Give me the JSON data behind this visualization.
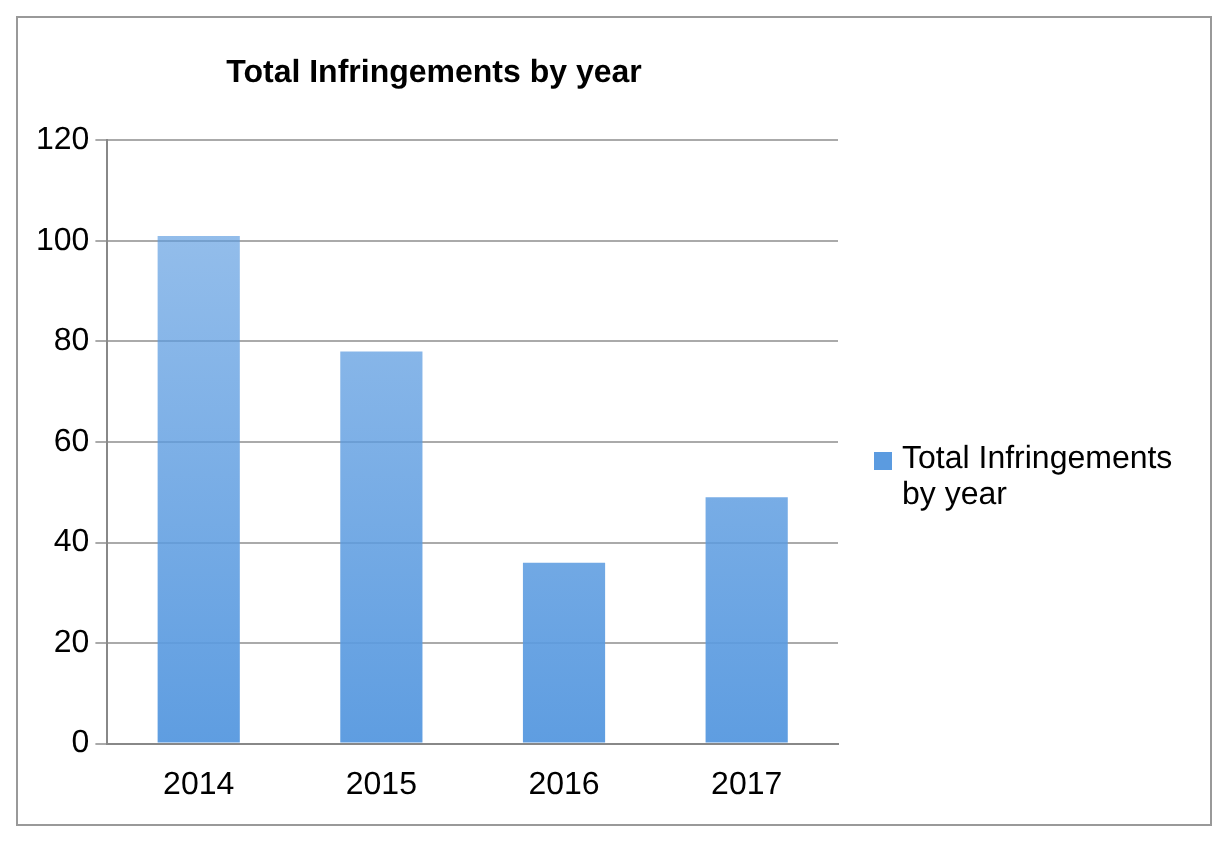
{
  "chart_data": {
    "type": "bar",
    "title": "Total Infringements by year",
    "categories": [
      "2014",
      "2015",
      "2016",
      "2017"
    ],
    "series": [
      {
        "name": "Total Infringements by year",
        "color": "#5b9be0",
        "values": [
          101,
          78,
          36,
          49
        ]
      }
    ],
    "ylim": [
      0,
      120
    ],
    "yticks": [
      0,
      20,
      40,
      60,
      80,
      100,
      120
    ],
    "grid": "y",
    "legend": "right"
  }
}
